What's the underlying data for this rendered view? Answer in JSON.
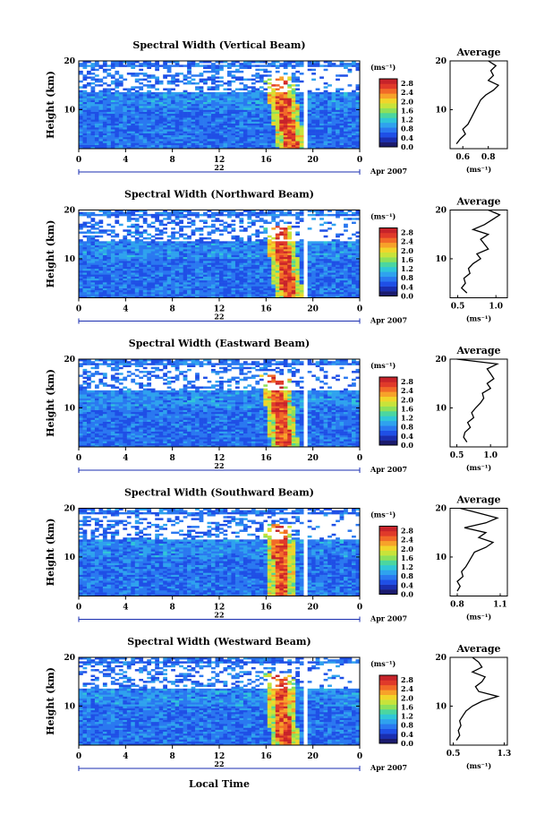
{
  "figure": {
    "date_label": "Apr 2007",
    "xlabel": "Local Time",
    "ylabel": "Height (km)",
    "colorbar_unit": "(ms⁻¹)",
    "avg_title": "Average",
    "avg_xlabel": "(ms⁻¹)"
  },
  "colors": {
    "colormap": [
      "#1b1b6e",
      "#1a2eb0",
      "#1f4fe6",
      "#2a78f0",
      "#2fa2ee",
      "#30c6d8",
      "#4bd6a0",
      "#8ee05a",
      "#c8e33a",
      "#f1d52a",
      "#f7a22a",
      "#f16a28",
      "#e03a2a",
      "#c7232a"
    ]
  },
  "chart_data": [
    {
      "type": "heatmap",
      "title": "Spectral Width (Vertical Beam)",
      "x_ticks": [
        "0",
        "4",
        "8",
        "12",
        "16",
        "20",
        "0"
      ],
      "x_range": [
        0,
        24
      ],
      "day_label": "22",
      "y_ticks": [
        "10",
        "20"
      ],
      "y_range": [
        2,
        20
      ],
      "colorbar_ticks": [
        "2.8",
        "2.4",
        "2.0",
        "1.6",
        "1.2",
        "0.8",
        "0.4",
        "0.0"
      ],
      "colorbar_range": [
        0,
        3.0
      ],
      "gap_hours": [
        19.3,
        19.6
      ],
      "spike_center_hours": [
        16.8,
        18.2
      ],
      "average_profile": {
        "xlim": [
          0.5,
          0.95
        ],
        "x_ticks": [
          "0.6",
          "0.8"
        ],
        "y_ticks": [
          "10",
          "20"
        ],
        "height_km": [
          3,
          4,
          5,
          6,
          7,
          8,
          9,
          10,
          11,
          12,
          13,
          14,
          15,
          16,
          17,
          18,
          19,
          20
        ],
        "width_ms": [
          0.55,
          0.58,
          0.62,
          0.6,
          0.64,
          0.66,
          0.68,
          0.7,
          0.72,
          0.74,
          0.78,
          0.84,
          0.88,
          0.8,
          0.84,
          0.82,
          0.86,
          0.8
        ]
      }
    },
    {
      "type": "heatmap",
      "title": "Spectral Width (Northward Beam)",
      "x_ticks": [
        "0",
        "4",
        "8",
        "12",
        "16",
        "20",
        "0"
      ],
      "x_range": [
        0,
        24
      ],
      "day_label": "22",
      "y_ticks": [
        "10",
        "20"
      ],
      "y_range": [
        2,
        20
      ],
      "colorbar_ticks": [
        "2.8",
        "2.4",
        "2.0",
        "1.6",
        "1.2",
        "0.8",
        "0.4",
        "0.0"
      ],
      "colorbar_range": [
        0,
        3.0
      ],
      "gap_hours": [
        19.3,
        19.6
      ],
      "spike_center_hours": [
        16.9,
        18.0
      ],
      "average_profile": {
        "xlim": [
          0.4,
          1.15
        ],
        "x_ticks": [
          "0.5",
          "1.0"
        ],
        "y_ticks": [
          "10",
          "20"
        ],
        "height_km": [
          3,
          4,
          5,
          6,
          7,
          8,
          9,
          10,
          11,
          12,
          13,
          14,
          15,
          16,
          17,
          18,
          19,
          20
        ],
        "width_ms": [
          0.62,
          0.55,
          0.6,
          0.58,
          0.66,
          0.64,
          0.7,
          0.8,
          0.75,
          0.9,
          0.85,
          0.8,
          0.9,
          0.7,
          0.85,
          0.95,
          1.05,
          0.9
        ]
      }
    },
    {
      "type": "heatmap",
      "title": "Spectral Width (Eastward Beam)",
      "x_ticks": [
        "0",
        "4",
        "8",
        "12",
        "16",
        "20",
        "0"
      ],
      "x_range": [
        0,
        24
      ],
      "day_label": "22",
      "y_ticks": [
        "10",
        "20"
      ],
      "y_range": [
        2,
        20
      ],
      "colorbar_ticks": [
        "2.8",
        "2.4",
        "2.0",
        "1.6",
        "1.2",
        "0.8",
        "0.4",
        "0.0"
      ],
      "colorbar_range": [
        0,
        3.0
      ],
      "gap_hours": [
        19.3,
        19.6
      ],
      "spike_center_hours": [
        16.6,
        17.6
      ],
      "average_profile": {
        "xlim": [
          0.4,
          1.25
        ],
        "x_ticks": [
          "0.5",
          "1.0"
        ],
        "y_ticks": [
          "10",
          "20"
        ],
        "height_km": [
          3,
          4,
          5,
          6,
          7,
          8,
          9,
          10,
          11,
          12,
          13,
          14,
          15,
          16,
          17,
          18,
          19,
          20
        ],
        "width_ms": [
          0.65,
          0.6,
          0.62,
          0.7,
          0.66,
          0.75,
          0.72,
          0.78,
          0.85,
          0.9,
          0.88,
          1.0,
          0.95,
          1.05,
          1.0,
          0.95,
          1.1,
          0.5
        ]
      }
    },
    {
      "type": "heatmap",
      "title": "Spectral Width (Southward Beam)",
      "x_ticks": [
        "0",
        "4",
        "8",
        "12",
        "16",
        "20",
        "0"
      ],
      "x_range": [
        0,
        24
      ],
      "day_label": "22",
      "y_ticks": [
        "10",
        "20"
      ],
      "y_range": [
        2,
        20
      ],
      "colorbar_ticks": [
        "2.8",
        "2.4",
        "2.0",
        "1.6",
        "1.2",
        "0.8",
        "0.4",
        "0.0"
      ],
      "colorbar_range": [
        0,
        3.0
      ],
      "gap_hours": [
        19.3,
        19.6
      ],
      "spike_center_hours": [
        17.0,
        17.4
      ],
      "average_profile": {
        "xlim": [
          0.75,
          1.15
        ],
        "x_ticks": [
          "0.8",
          "1.1"
        ],
        "y_ticks": [
          "10",
          "20"
        ],
        "height_km": [
          3,
          4,
          5,
          6,
          7,
          8,
          9,
          10,
          11,
          12,
          13,
          14,
          15,
          16,
          17,
          18,
          19,
          20
        ],
        "width_ms": [
          0.8,
          0.82,
          0.8,
          0.84,
          0.83,
          0.86,
          0.88,
          0.9,
          0.92,
          1.0,
          1.05,
          0.95,
          1.0,
          0.85,
          1.0,
          1.08,
          0.95,
          0.82
        ]
      }
    },
    {
      "type": "heatmap",
      "title": "Spectral Width (Westward Beam)",
      "x_ticks": [
        "0",
        "4",
        "8",
        "12",
        "16",
        "20",
        "0"
      ],
      "x_range": [
        0,
        24
      ],
      "day_label": "22",
      "y_ticks": [
        "10",
        "20"
      ],
      "y_range": [
        2,
        20
      ],
      "colorbar_ticks": [
        "2.8",
        "2.4",
        "2.0",
        "1.6",
        "1.2",
        "0.8",
        "0.4",
        "0.0"
      ],
      "colorbar_range": [
        0,
        3.0
      ],
      "gap_hours": [
        19.3,
        19.6
      ],
      "spike_center_hours": [
        17.0,
        17.6
      ],
      "average_profile": {
        "xlim": [
          0.45,
          1.35
        ],
        "x_ticks": [
          "0.5",
          "1.3"
        ],
        "y_ticks": [
          "10",
          "20"
        ],
        "height_km": [
          3,
          4,
          5,
          6,
          7,
          8,
          9,
          10,
          11,
          12,
          13,
          14,
          15,
          16,
          17,
          18,
          19,
          20
        ],
        "width_ms": [
          0.55,
          0.6,
          0.58,
          0.62,
          0.6,
          0.65,
          0.7,
          0.8,
          0.95,
          1.2,
          0.9,
          0.85,
          0.95,
          1.0,
          0.8,
          0.95,
          0.9,
          0.8
        ]
      }
    }
  ]
}
